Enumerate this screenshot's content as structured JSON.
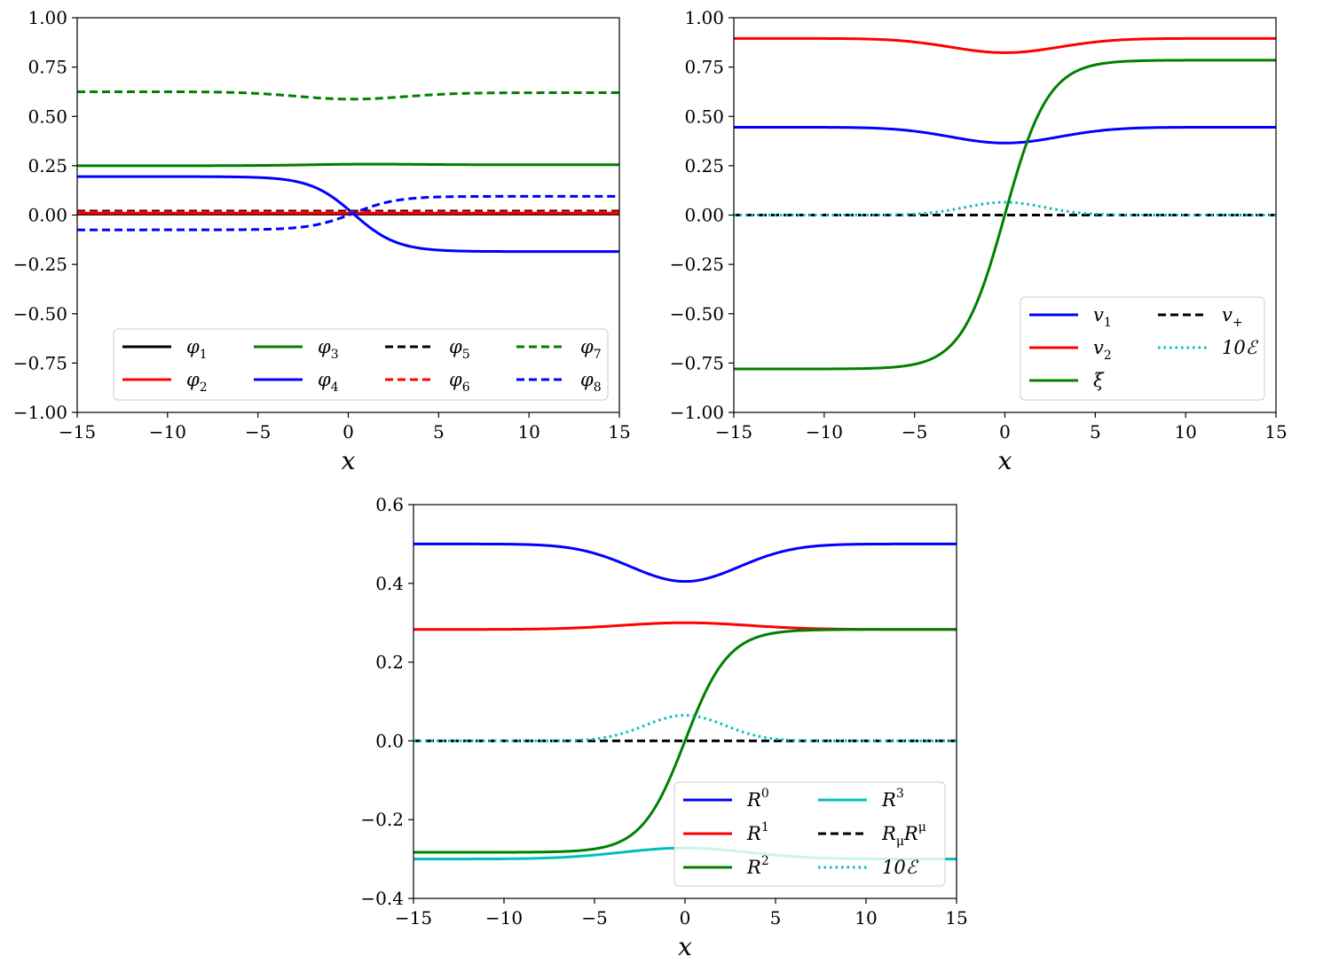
{
  "chart_data": [
    {
      "id": "phi",
      "type": "line",
      "title": "",
      "xlabel": "x",
      "ylabel": "",
      "xlim": [
        -15,
        15
      ],
      "ylim": [
        -1.0,
        1.0
      ],
      "xticks": [
        -15,
        -10,
        -5,
        0,
        5,
        10,
        15
      ],
      "yticks": [
        -1.0,
        -0.75,
        -0.5,
        -0.25,
        0.0,
        0.25,
        0.5,
        0.75,
        1.0
      ],
      "xtick_labels": [
        "−15",
        "−10",
        "−5",
        "0",
        "5",
        "10",
        "15"
      ],
      "ytick_labels": [
        "−1.00",
        "−0.75",
        "−0.50",
        "−0.25",
        "0.00",
        "0.25",
        "0.50",
        "0.75",
        "1.00"
      ],
      "legend": {
        "placement": "bottom",
        "columns": 4
      },
      "series": [
        {
          "name": "φ1",
          "base": "φ",
          "sub": "1",
          "color": "#000000",
          "style": "solid",
          "profile": "bump",
          "left": 0.005,
          "right": 0.005,
          "amp": 0.0,
          "w": 3
        },
        {
          "name": "φ2",
          "base": "φ",
          "sub": "2",
          "color": "#ff0000",
          "style": "solid",
          "profile": "bump",
          "left": 0.01,
          "right": 0.01,
          "amp": 0.0,
          "w": 3
        },
        {
          "name": "φ3",
          "base": "φ",
          "sub": "3",
          "color": "#008000",
          "style": "solid",
          "profile": "bump",
          "left": 0.25,
          "right": 0.255,
          "amp": 0.005,
          "w": 3
        },
        {
          "name": "φ4",
          "base": "φ",
          "sub": "4",
          "color": "#0000ff",
          "style": "solid",
          "profile": "kink",
          "left": 0.195,
          "right": -0.185,
          "center": 0.3,
          "w": 2.4
        },
        {
          "name": "φ5",
          "base": "φ",
          "sub": "5",
          "color": "#000000",
          "style": "dashed",
          "profile": "bump",
          "left": 0.02,
          "right": 0.02,
          "amp": 0.0,
          "w": 3
        },
        {
          "name": "φ6",
          "base": "φ",
          "sub": "6",
          "color": "#ff0000",
          "style": "dashed",
          "profile": "bump",
          "left": 0.015,
          "right": 0.015,
          "amp": 0.0,
          "w": 3
        },
        {
          "name": "φ7",
          "base": "φ",
          "sub": "7",
          "color": "#008000",
          "style": "dashed",
          "profile": "bump",
          "left": 0.625,
          "right": 0.62,
          "amp": -0.035,
          "w": 3
        },
        {
          "name": "φ8",
          "base": "φ",
          "sub": "8",
          "color": "#0000ff",
          "style": "dashed",
          "profile": "kink",
          "left": -0.075,
          "right": 0.095,
          "center": 0.3,
          "w": 2.4
        }
      ]
    },
    {
      "id": "v",
      "type": "line",
      "title": "",
      "xlabel": "x",
      "ylabel": "",
      "xlim": [
        -15,
        15
      ],
      "ylim": [
        -1.0,
        1.0
      ],
      "xticks": [
        -15,
        -10,
        -5,
        0,
        5,
        10,
        15
      ],
      "yticks": [
        -1.0,
        -0.75,
        -0.5,
        -0.25,
        0.0,
        0.25,
        0.5,
        0.75,
        1.0
      ],
      "xtick_labels": [
        "−15",
        "−10",
        "−5",
        "0",
        "5",
        "10",
        "15"
      ],
      "ytick_labels": [
        "−1.00",
        "−0.75",
        "−0.50",
        "−0.25",
        "0.00",
        "0.25",
        "0.50",
        "0.75",
        "1.00"
      ],
      "legend": {
        "placement": "bottom-right",
        "columns": 2
      },
      "series": [
        {
          "name": "v1",
          "base": "v",
          "sub": "1",
          "color": "#0000ff",
          "style": "solid",
          "profile": "bump",
          "left": 0.445,
          "right": 0.445,
          "amp": -0.08,
          "w": 3
        },
        {
          "name": "v2",
          "base": "v",
          "sub": "2",
          "color": "#ff0000",
          "style": "solid",
          "profile": "bump",
          "left": 0.895,
          "right": 0.895,
          "amp": -0.072,
          "w": 3
        },
        {
          "name": "ξ",
          "base": "ξ",
          "sub": "",
          "color": "#008000",
          "style": "solid",
          "profile": "kink",
          "left": -0.78,
          "right": 0.785,
          "center": 0.0,
          "w": 2.4
        },
        {
          "name": "v+",
          "base": "v",
          "sub": "+",
          "color": "#000000",
          "style": "dashed",
          "profile": "bump",
          "left": 0.0,
          "right": 0.0,
          "amp": 0.0,
          "w": 3
        },
        {
          "name": "10ℰ",
          "base": "10ℰ",
          "sub": "",
          "color": "#00bfbf",
          "style": "dotted",
          "profile": "bump",
          "left": 0.0,
          "right": 0.0,
          "amp": 0.065,
          "w": 2.2
        }
      ]
    },
    {
      "id": "R",
      "type": "line",
      "title": "",
      "xlabel": "x",
      "ylabel": "",
      "xlim": [
        -15,
        15
      ],
      "ylim": [
        -0.4,
        0.6
      ],
      "xticks": [
        -15,
        -10,
        -5,
        0,
        5,
        10,
        15
      ],
      "yticks": [
        -0.4,
        -0.2,
        0.0,
        0.2,
        0.4,
        0.6
      ],
      "xtick_labels": [
        "−15",
        "−10",
        "−5",
        "0",
        "5",
        "10",
        "15"
      ],
      "ytick_labels": [
        "−0.4",
        "−0.2",
        "0.0",
        "0.2",
        "0.4",
        "0.6"
      ],
      "legend": {
        "placement": "bottom-right",
        "columns": 2
      },
      "series": [
        {
          "name": "R0",
          "base": "R",
          "sup": "0",
          "color": "#0000ff",
          "style": "solid",
          "profile": "bump",
          "left": 0.5,
          "right": 0.5,
          "amp": -0.095,
          "w": 3
        },
        {
          "name": "R1",
          "base": "R",
          "sup": "1",
          "color": "#ff0000",
          "style": "solid",
          "profile": "bump",
          "left": 0.283,
          "right": 0.283,
          "amp": 0.017,
          "w": 3.5
        },
        {
          "name": "R2",
          "base": "R",
          "sup": "2",
          "color": "#008000",
          "style": "solid",
          "profile": "kink",
          "left": -0.283,
          "right": 0.283,
          "center": 0.0,
          "w": 2.4
        },
        {
          "name": "R3",
          "base": "R",
          "sup": "3",
          "color": "#00bfbf",
          "style": "solid",
          "profile": "bump",
          "left": -0.3,
          "right": -0.3,
          "amp": 0.028,
          "w": 3.5
        },
        {
          "name": "RμRμ",
          "base": "R",
          "sub": "μ",
          "base2": "R",
          "sup": "μ",
          "color": "#000000",
          "style": "dashed",
          "profile": "bump",
          "left": 0.0,
          "right": 0.0,
          "amp": 0.0,
          "w": 3
        },
        {
          "name": "10ℰ",
          "base": "10ℰ",
          "sub": "",
          "color": "#00bfbf",
          "style": "dotted",
          "profile": "bump",
          "left": 0.0,
          "right": 0.0,
          "amp": 0.065,
          "w": 2.2
        }
      ]
    }
  ]
}
